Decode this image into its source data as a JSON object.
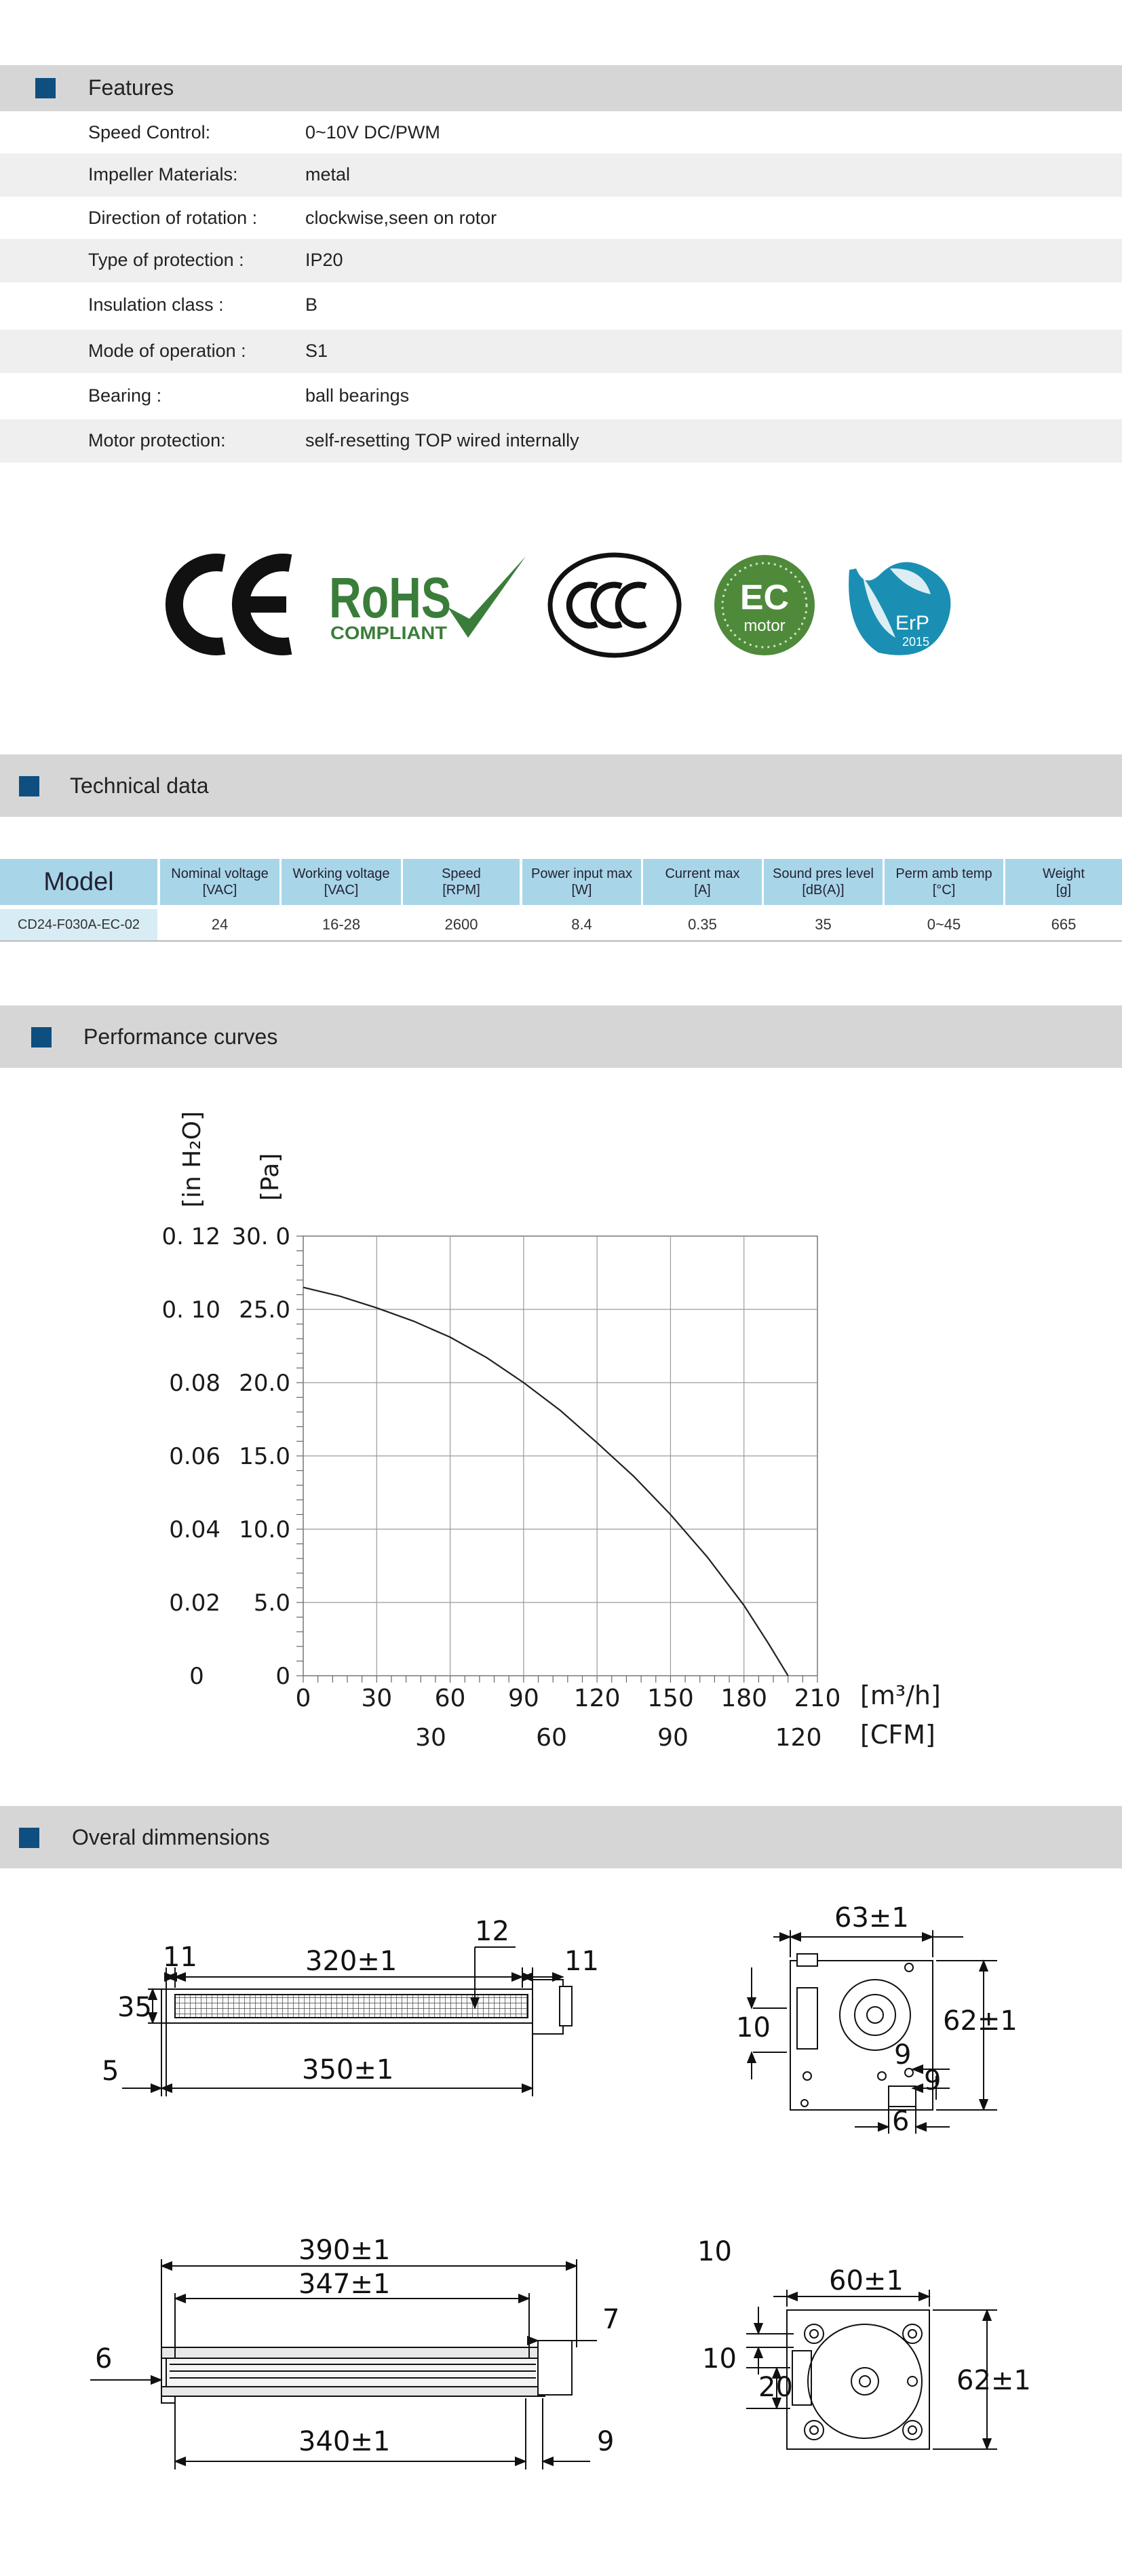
{
  "features": {
    "title": "Features",
    "rows": [
      {
        "label": "Speed Control:",
        "value": "0~10V DC/PWM"
      },
      {
        "label": "Impeller Materials:",
        "value": "metal"
      },
      {
        "label": "Direction  of  rotation  :",
        "value": "clockwise,seen on rotor"
      },
      {
        "label": "Type of protection :",
        "value": "IP20"
      },
      {
        "label": "Insulation  class :",
        "value": "B"
      },
      {
        "label": "Mode of operation :",
        "value": "S1"
      },
      {
        "label": "Bearing :",
        "value": "ball  bearings"
      },
      {
        "label": "Motor protection:",
        "value": "self-resetting TOP wired internally"
      }
    ]
  },
  "certifications": {
    "rohs_main": "RoHS",
    "rohs_sub": "COMPLIANT",
    "ec_main": "EC",
    "ec_sub": "motor",
    "erp_main": "ErP",
    "erp_sub": "2015"
  },
  "technical": {
    "title": "Technical data",
    "headers": [
      {
        "l1": "Model",
        "l2": ""
      },
      {
        "l1": "Nominal voltage",
        "l2": "[VAC]"
      },
      {
        "l1": "Working voltage",
        "l2": "[VAC]"
      },
      {
        "l1": "Speed",
        "l2": "[RPM]"
      },
      {
        "l1": "Power input max",
        "l2": "[W]"
      },
      {
        "l1": "Current max",
        "l2": "[A]"
      },
      {
        "l1": "Sound pres level",
        "l2": "[dB(A)]"
      },
      {
        "l1": "Perm amb temp",
        "l2": "[°C]"
      },
      {
        "l1": "Weight",
        "l2": "[g]"
      }
    ],
    "rows": [
      [
        "CD24-F030A-EC-02",
        "24",
        "16-28",
        "2600",
        "8.4",
        "0.35",
        "35",
        "0~45",
        "665"
      ]
    ]
  },
  "performance": {
    "title": "Performance curves"
  },
  "chart_data": {
    "type": "line",
    "title": "",
    "xlabel": "[m³/h]",
    "xlabel_secondary": "[CFM]",
    "ylabel": "[Pa]",
    "ylabel_secondary": "[in H₂O]",
    "xlim": [
      0,
      210
    ],
    "ylim": [
      0,
      30
    ],
    "x_ticks": [
      "0",
      "30",
      "60",
      "90",
      "120",
      "150",
      "180",
      "210"
    ],
    "x_ticks_secondary": [
      "30",
      "60",
      "90",
      "120"
    ],
    "y_ticks": [
      "0",
      "5.0",
      "10.0",
      "15.0",
      "20.0",
      "25.0",
      "30. 0"
    ],
    "y_ticks_secondary": [
      "0",
      "0.02",
      "0.04",
      "0.06",
      "0.08",
      "0. 10",
      "0. 12"
    ],
    "grid": true,
    "series": [
      {
        "x": [
          0,
          15,
          30,
          45,
          60,
          75,
          90,
          105,
          120,
          135,
          150,
          165,
          180,
          190,
          198
        ],
        "y": [
          26.5,
          25.9,
          25.1,
          24.2,
          23.1,
          21.7,
          20.0,
          18.1,
          15.9,
          13.6,
          11.0,
          8.1,
          4.8,
          2.2,
          0
        ]
      }
    ]
  },
  "dimensions": {
    "title": "Overal dimmensions",
    "view1": {
      "d11a": "11",
      "d320": "320±1",
      "d12": "12",
      "d11b": "11",
      "d35": "35",
      "d5": "5",
      "d350": "350±1"
    },
    "view2": {
      "d63": "63±1",
      "d10": "10",
      "d62": "62±1",
      "d9a": "9",
      "d9b": "9",
      "d6": "6"
    },
    "view3": {
      "d390": "390±1",
      "d347": "347±1",
      "d7": "7",
      "d6": "6",
      "d340": "340±1",
      "d9": "9"
    },
    "view4": {
      "d10a": "10",
      "d60": "60±1",
      "d10b": "10",
      "d20": "20",
      "d62": "62±1"
    }
  },
  "colors": {
    "band": "#d6d6d6",
    "accent_square": "#0e4f80",
    "table_header": "#a9d5e8",
    "ec_green": "#4e8a3a",
    "erp_teal": "#1a8fb3",
    "rohs_green": "#3a7d3a"
  }
}
